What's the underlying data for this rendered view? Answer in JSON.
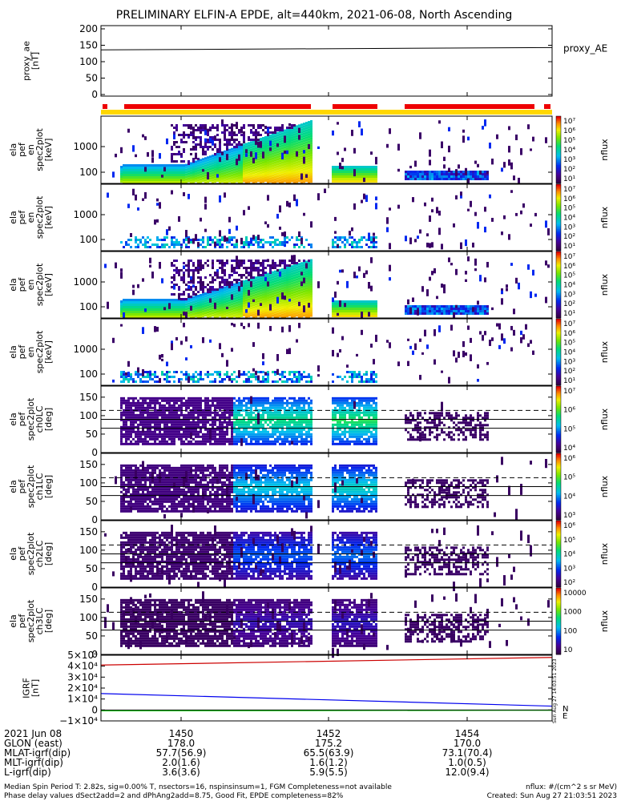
{
  "title": "PRELIMINARY ELFIN-A EPDE, alt=440km, 2021-06-08, North Ascending",
  "created": "Created: Sun Aug 27 21:03:51 2023",
  "side_stamp": "Sun Aug 27 14:03:51 2023",
  "colors": {
    "red_bar": "#ee0000",
    "yellow_bar": "#ffd700",
    "frame": "#000000"
  },
  "chart_data": {
    "type": "heatmap",
    "x_axis": {
      "date": "2021 Jun 08",
      "ticks": [
        "1450",
        "1452",
        "1454"
      ],
      "ephemeris": [
        {
          "label": "GLON (east)",
          "values": [
            "178.0",
            "175.2",
            "170.0"
          ]
        },
        {
          "label": "MLAT-igrf(dip)",
          "values": [
            "57.7(56.9)",
            "65.5(63.9)",
            "73.1(70.4)"
          ]
        },
        {
          "label": "MLT-igrf(dip)",
          "values": [
            "2.0(1.6)",
            "1.6(1.2)",
            "1.0(0.5)"
          ]
        },
        {
          "label": "L-igrf(dip)",
          "values": [
            "3.6(3.6)",
            "5.9(5.5)",
            "12.0(9.4)"
          ]
        }
      ]
    },
    "panels": [
      {
        "id": "proxy-ae",
        "type": "line",
        "ylabel": [
          "proxy_ae",
          "[nT]"
        ],
        "yticks": [
          "200",
          "150",
          "100",
          "50",
          "0"
        ],
        "ylim": [
          0,
          200
        ],
        "legend": "proxy_AE",
        "series": [
          {
            "start": 136,
            "end": 143
          }
        ]
      },
      {
        "id": "spec-en-1",
        "type": "heatmap",
        "ylabel": [
          "ela",
          "pef",
          "en",
          "spec2plot",
          "[keV]"
        ],
        "yticks": [
          "1000",
          "100"
        ],
        "ylog": true,
        "cbar": [
          "10⁷",
          "10⁶",
          "10⁵",
          "10⁴",
          "10³",
          "10²",
          "10¹"
        ],
        "cbar_label": "nflux"
      },
      {
        "id": "spec-en-2",
        "type": "heatmap",
        "ylabel": [
          "ela",
          "pef",
          "en",
          "spec2plot",
          "[keV]"
        ],
        "yticks": [
          "1000",
          "100"
        ],
        "ylog": true,
        "cbar": [
          "10⁷",
          "10⁶",
          "10⁵",
          "10⁴",
          "10³",
          "10²",
          "10¹"
        ],
        "cbar_label": "nflux"
      },
      {
        "id": "spec-en-3",
        "type": "heatmap",
        "ylabel": [
          "ela",
          "pef",
          "en",
          "spec2plot",
          "[keV]"
        ],
        "yticks": [
          "1000",
          "100"
        ],
        "ylog": true,
        "cbar": [
          "10⁷",
          "10⁶",
          "10⁵",
          "10⁴",
          "10³",
          "10²",
          "10¹"
        ],
        "cbar_label": "nflux"
      },
      {
        "id": "spec-en-4",
        "type": "heatmap",
        "ylabel": [
          "ela",
          "pef",
          "en",
          "spec2plot",
          "[keV]"
        ],
        "yticks": [
          "1000",
          "100"
        ],
        "ylog": true,
        "cbar": [
          "10⁷",
          "10⁶",
          "10⁵",
          "10⁴",
          "10³",
          "10²",
          "10¹"
        ],
        "cbar_label": "nflux"
      },
      {
        "id": "spec-pa-0",
        "type": "heatmap",
        "ylabel": [
          "ela",
          "pef",
          "spec2plot",
          "ch0LC",
          "[deg]"
        ],
        "yticks": [
          "150",
          "100",
          "50",
          "0"
        ],
        "ylim": [
          0,
          180
        ],
        "lines": [
          66,
          90,
          114
        ],
        "cbar": [
          "10⁷",
          "10⁶",
          "10⁵",
          "10⁴"
        ],
        "cbar_label": "nflux"
      },
      {
        "id": "spec-pa-1",
        "type": "heatmap",
        "ylabel": [
          "ela",
          "pef",
          "spec2plot",
          "ch1LC",
          "[deg]"
        ],
        "yticks": [
          "150",
          "100",
          "50",
          "0"
        ],
        "ylim": [
          0,
          180
        ],
        "lines": [
          66,
          90,
          114
        ],
        "cbar": [
          "10⁶",
          "10⁵",
          "10⁴",
          "10³"
        ],
        "cbar_label": "nflux"
      },
      {
        "id": "spec-pa-2",
        "type": "heatmap",
        "ylabel": [
          "ela",
          "pef",
          "spec2plot",
          "ch2LC",
          "[deg]"
        ],
        "yticks": [
          "150",
          "100",
          "50",
          "0"
        ],
        "ylim": [
          0,
          180
        ],
        "lines": [
          66,
          90,
          114
        ],
        "cbar": [
          "10⁶",
          "10⁵",
          "10⁴",
          "10³",
          "10²"
        ],
        "cbar_label": "nflux"
      },
      {
        "id": "spec-pa-3",
        "type": "heatmap",
        "ylabel": [
          "ela",
          "pef",
          "spec2plot",
          "ch3LC",
          "[deg]"
        ],
        "yticks": [
          "150",
          "100",
          "50",
          "0"
        ],
        "ylim": [
          0,
          180
        ],
        "lines": [
          66,
          90,
          114
        ],
        "cbar": [
          "10000",
          "1000",
          "100",
          "10"
        ],
        "cbar_label": "nflux"
      },
      {
        "id": "igrf",
        "type": "line",
        "ylabel": [
          "IGRF",
          "[nT]"
        ],
        "yticks": [
          "5×10⁴",
          "4×10⁴",
          "3×10⁴",
          "2×10⁴",
          "1×10⁴",
          "0",
          "−1×10⁴"
        ],
        "ylim": [
          -10000,
          50000
        ],
        "legend": [
          "N",
          "E"
        ],
        "series": [
          {
            "name": "red",
            "start": 41000,
            "end": 48000
          },
          {
            "name": "N",
            "start": 15000,
            "end": 3500
          },
          {
            "name": "E",
            "start": -800,
            "end": -300
          }
        ]
      }
    ]
  },
  "footer": {
    "line1": "Median Spin Period T: 2.82s, sig=0.00% T, nsectors=16, nspinsinsum=1, FGM Completeness=not available",
    "line2": "Phase delay values dSect2add=2 and dPhAng2add=8.75, Good Fit, EPDE completeness=82%",
    "units": "nflux: #/(cm^2 s sr MeV)"
  }
}
